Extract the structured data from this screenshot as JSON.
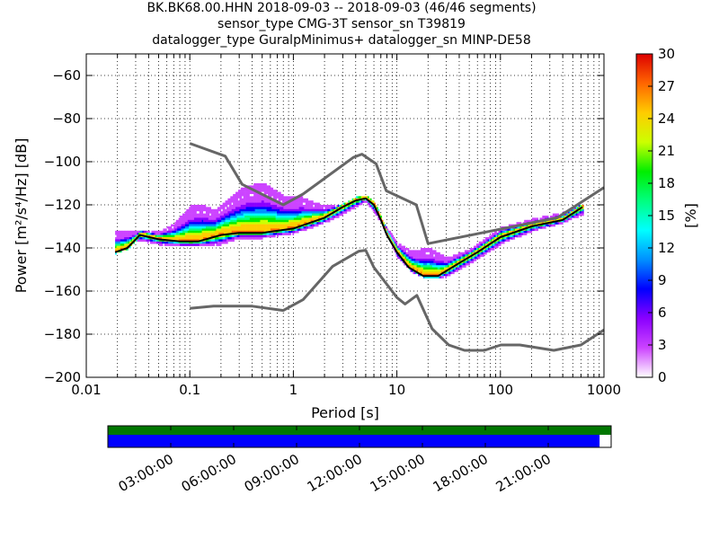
{
  "title_lines": [
    "BK.BK68.00.HHN   2018-09-03 -- 2018-09-03  (46/46 segments)",
    "sensor_type CMG-3T sensor_sn T39819",
    "datalogger_type GuralpMinimus+ datalogger_sn MINP-DE58"
  ],
  "chart_data": [
    {
      "type": "heatmap",
      "xlabel": "Period [s]",
      "ylabel": "Power [m²/s⁴/Hz] [dB]",
      "xscale": "log",
      "xlim": [
        0.01,
        1000
      ],
      "ylim": [
        -200,
        -50
      ],
      "xticks": [
        {
          "v": 0.01,
          "label": "0.01"
        },
        {
          "v": 0.1,
          "label": "0.1"
        },
        {
          "v": 1,
          "label": "1"
        },
        {
          "v": 10,
          "label": "10"
        },
        {
          "v": 100,
          "label": "100"
        },
        {
          "v": 1000,
          "label": "1000"
        }
      ],
      "yticks": [
        {
          "v": -200,
          "label": "−200"
        },
        {
          "v": -180,
          "label": "−180"
        },
        {
          "v": -160,
          "label": "−160"
        },
        {
          "v": -140,
          "label": "−140"
        },
        {
          "v": -120,
          "label": "−120"
        },
        {
          "v": -100,
          "label": "−100"
        },
        {
          "v": -80,
          "label": "−80"
        },
        {
          "v": -60,
          "label": "−60"
        }
      ],
      "grid": true,
      "colorbar": {
        "label": "[%]",
        "range": [
          0,
          30
        ],
        "ticks": [
          "0",
          "3",
          "6",
          "9",
          "12",
          "15",
          "18",
          "21",
          "24",
          "27",
          "30"
        ],
        "colors": [
          "#ffffff",
          "#cc44ff",
          "#8a00ff",
          "#0000ff",
          "#0090ff",
          "#00ffff",
          "#00ff80",
          "#00ee00",
          "#ccff00",
          "#ffcc00",
          "#ff6600",
          "#dd0000"
        ]
      },
      "series": [
        {
          "role": "nhnm",
          "color": "#666666",
          "points": [
            [
              0.1,
              -91.5
            ],
            [
              0.22,
              -97.4
            ],
            [
              0.32,
              -110.5
            ],
            [
              0.8,
              -120
            ],
            [
              1.24,
              -115
            ],
            [
              3.8,
              -98
            ],
            [
              4.6,
              -96.5
            ],
            [
              6.3,
              -101
            ],
            [
              7.9,
              -113.5
            ],
            [
              15.4,
              -120
            ],
            [
              20,
              -138
            ],
            [
              354,
              -126
            ],
            [
              1000,
              -112
            ]
          ]
        },
        {
          "role": "nlnm",
          "color": "#666666",
          "points": [
            [
              0.1,
              -168
            ],
            [
              0.17,
              -167
            ],
            [
              0.4,
              -167
            ],
            [
              0.8,
              -169
            ],
            [
              1.24,
              -164
            ],
            [
              2.4,
              -148.5
            ],
            [
              4.3,
              -141.5
            ],
            [
              5,
              -141.1
            ],
            [
              6,
              -149
            ],
            [
              10,
              -163
            ],
            [
              12,
              -166
            ],
            [
              15.6,
              -162
            ],
            [
              21.9,
              -177.5
            ],
            [
              31.6,
              -185
            ],
            [
              45,
              -187.5
            ],
            [
              70,
              -187.5
            ],
            [
              101,
              -185
            ],
            [
              154,
              -185
            ],
            [
              328,
              -187.5
            ],
            [
              600,
              -185
            ],
            [
              1000,
              -178
            ]
          ]
        },
        {
          "role": "mode",
          "color": "#000000",
          "points": [
            [
              0.019,
              -142
            ],
            [
              0.025,
              -140
            ],
            [
              0.033,
              -134
            ],
            [
              0.05,
              -136
            ],
            [
              0.08,
              -137
            ],
            [
              0.12,
              -137
            ],
            [
              0.2,
              -134
            ],
            [
              0.3,
              -133
            ],
            [
              0.5,
              -133
            ],
            [
              1,
              -131
            ],
            [
              2,
              -126
            ],
            [
              3,
              -121
            ],
            [
              4,
              -118
            ],
            [
              5,
              -117
            ],
            [
              6,
              -120
            ],
            [
              7,
              -127
            ],
            [
              8,
              -134
            ],
            [
              10,
              -142
            ],
            [
              13,
              -149
            ],
            [
              18,
              -153
            ],
            [
              25,
              -153
            ],
            [
              40,
              -147
            ],
            [
              60,
              -142
            ],
            [
              100,
              -135
            ],
            [
              200,
              -130
            ],
            [
              400,
              -127
            ],
            [
              620,
              -121
            ]
          ]
        },
        {
          "role": "upper-spread",
          "color": "#8a00ff",
          "points": [
            [
              0.05,
              -133
            ],
            [
              0.07,
              -129
            ],
            [
              0.1,
              -121
            ],
            [
              0.13,
              -120
            ],
            [
              0.17,
              -123
            ],
            [
              0.24,
              -117
            ],
            [
              0.33,
              -112
            ],
            [
              0.5,
              -110
            ],
            [
              0.8,
              -116
            ],
            [
              1.2,
              -117
            ],
            [
              2,
              -121
            ],
            [
              3,
              -120
            ],
            [
              5,
              -117
            ],
            [
              7,
              -127
            ],
            [
              10,
              -138
            ],
            [
              14,
              -142
            ],
            [
              20,
              -140
            ],
            [
              30,
              -145
            ],
            [
              50,
              -141
            ],
            [
              100,
              -131
            ],
            [
              200,
              -127
            ],
            [
              400,
              -124
            ],
            [
              620,
              -120
            ]
          ]
        },
        {
          "role": "lower-spread",
          "color": "#00ee00",
          "points": [
            [
              0.03,
              -137
            ],
            [
              0.05,
              -139
            ],
            [
              0.1,
              -140
            ],
            [
              0.2,
              -139
            ],
            [
              0.3,
              -136
            ],
            [
              0.5,
              -136
            ],
            [
              1,
              -134
            ],
            [
              2,
              -129
            ],
            [
              3,
              -125
            ],
            [
              5,
              -119
            ],
            [
              7,
              -129
            ],
            [
              10,
              -145
            ],
            [
              14,
              -152
            ],
            [
              20,
              -155
            ],
            [
              30,
              -154
            ],
            [
              50,
              -148
            ],
            [
              100,
              -139
            ],
            [
              200,
              -133
            ],
            [
              400,
              -129
            ],
            [
              620,
              -125
            ]
          ]
        }
      ]
    },
    {
      "type": "timeline",
      "tick_labels": [
        "03:00:00",
        "06:00:00",
        "09:00:00",
        "12:00:00",
        "15:00:00",
        "18:00:00",
        "21:00:00"
      ],
      "tick_hours": [
        3,
        6,
        9,
        12,
        15,
        18,
        21
      ],
      "range_hours": [
        0,
        24
      ],
      "bars": [
        {
          "role": "available-data",
          "color": "#007700",
          "start": 0,
          "end": 1.0
        },
        {
          "role": "processed-segments",
          "color": "#0000ff",
          "start": 0,
          "end": 0.977
        }
      ]
    }
  ]
}
